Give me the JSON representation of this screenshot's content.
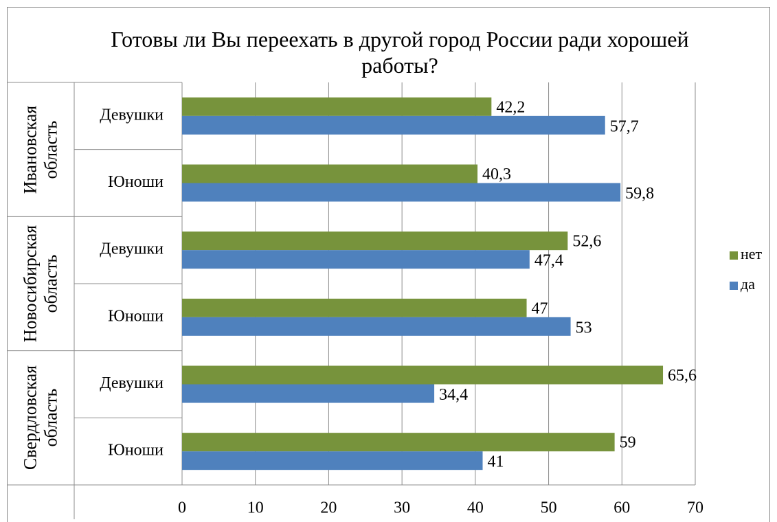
{
  "chart_data": {
    "type": "bar",
    "orientation": "horizontal",
    "title": "Готовы ли Вы переехать в другой город России ради хорошей работы?",
    "groups": [
      {
        "name": "Ивановская область",
        "categories": [
          "Девушки",
          "Юноши"
        ]
      },
      {
        "name": "Новосибирская область",
        "categories": [
          "Девушки",
          "Юноши"
        ]
      },
      {
        "name": "Свердловская область",
        "categories": [
          "Девушки",
          "Юноши"
        ]
      }
    ],
    "series": [
      {
        "name": "нет",
        "color": "#77933c",
        "values": [
          42.2,
          40.3,
          52.6,
          47,
          65.6,
          59
        ],
        "value_labels": [
          "42,2",
          "40,3",
          "52,6",
          "47",
          "65,6",
          "59"
        ]
      },
      {
        "name": "да",
        "color": "#4f81bd",
        "values": [
          57.7,
          59.8,
          47.4,
          53,
          34.4,
          41
        ],
        "value_labels": [
          "57,7",
          "59,8",
          "47,4",
          "53",
          "34,4",
          "41"
        ]
      }
    ],
    "xlim": [
      0,
      70
    ],
    "xticks": [
      0,
      10,
      20,
      30,
      40,
      50,
      60,
      70
    ],
    "grid": true,
    "legend": "right"
  }
}
